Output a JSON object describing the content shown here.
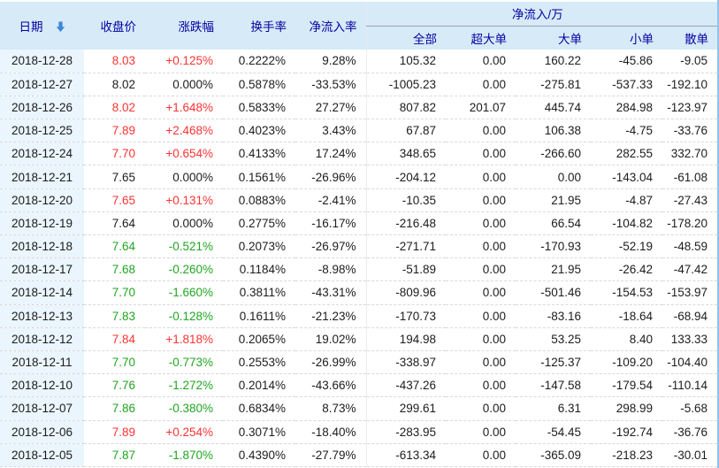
{
  "colors": {
    "up": "#ff3232",
    "down": "#21a521",
    "flat": "#1c1c1c",
    "header_bg": "#d6eaf8",
    "header_text": "#0000a0",
    "date_col_bg": "#eaf5fd",
    "sort_arrow": "#3c86d8"
  },
  "table": {
    "header": {
      "date": "日期",
      "close": "收盘价",
      "change": "涨跌幅",
      "turnover": "换手率",
      "inflow_rate": "净流入率",
      "group": "净流入/万",
      "sub": [
        "全部",
        "超大单",
        "大单",
        "小单",
        "散单"
      ]
    },
    "rows": [
      {
        "date": "2018-12-28",
        "close": "8.03",
        "change": "+0.125%",
        "turnover": "0.2222%",
        "inflow_rate": "9.28%",
        "all": "105.32",
        "xlarge": "0.00",
        "large": "160.22",
        "small": "-45.86",
        "retail": "-9.05",
        "trend": "up"
      },
      {
        "date": "2018-12-27",
        "close": "8.02",
        "change": "0.000%",
        "turnover": "0.5878%",
        "inflow_rate": "-33.53%",
        "all": "-1005.23",
        "xlarge": "0.00",
        "large": "-275.81",
        "small": "-537.33",
        "retail": "-192.10",
        "trend": "flat"
      },
      {
        "date": "2018-12-26",
        "close": "8.02",
        "change": "+1.648%",
        "turnover": "0.5833%",
        "inflow_rate": "27.27%",
        "all": "807.82",
        "xlarge": "201.07",
        "large": "445.74",
        "small": "284.98",
        "retail": "-123.97",
        "trend": "up"
      },
      {
        "date": "2018-12-25",
        "close": "7.89",
        "change": "+2.468%",
        "turnover": "0.4023%",
        "inflow_rate": "3.43%",
        "all": "67.87",
        "xlarge": "0.00",
        "large": "106.38",
        "small": "-4.75",
        "retail": "-33.76",
        "trend": "up"
      },
      {
        "date": "2018-12-24",
        "close": "7.70",
        "change": "+0.654%",
        "turnover": "0.4133%",
        "inflow_rate": "17.24%",
        "all": "348.65",
        "xlarge": "0.00",
        "large": "-266.60",
        "small": "282.55",
        "retail": "332.70",
        "trend": "up"
      },
      {
        "date": "2018-12-21",
        "close": "7.65",
        "change": "0.000%",
        "turnover": "0.1561%",
        "inflow_rate": "-26.96%",
        "all": "-204.12",
        "xlarge": "0.00",
        "large": "0.00",
        "small": "-143.04",
        "retail": "-61.08",
        "trend": "flat"
      },
      {
        "date": "2018-12-20",
        "close": "7.65",
        "change": "+0.131%",
        "turnover": "0.0883%",
        "inflow_rate": "-2.41%",
        "all": "-10.35",
        "xlarge": "0.00",
        "large": "21.95",
        "small": "-4.87",
        "retail": "-27.43",
        "trend": "up"
      },
      {
        "date": "2018-12-19",
        "close": "7.64",
        "change": "0.000%",
        "turnover": "0.2775%",
        "inflow_rate": "-16.17%",
        "all": "-216.48",
        "xlarge": "0.00",
        "large": "66.54",
        "small": "-104.82",
        "retail": "-178.20",
        "trend": "flat"
      },
      {
        "date": "2018-12-18",
        "close": "7.64",
        "change": "-0.521%",
        "turnover": "0.2073%",
        "inflow_rate": "-26.97%",
        "all": "-271.71",
        "xlarge": "0.00",
        "large": "-170.93",
        "small": "-52.19",
        "retail": "-48.59",
        "trend": "down"
      },
      {
        "date": "2018-12-17",
        "close": "7.68",
        "change": "-0.260%",
        "turnover": "0.1184%",
        "inflow_rate": "-8.98%",
        "all": "-51.89",
        "xlarge": "0.00",
        "large": "21.95",
        "small": "-26.42",
        "retail": "-47.42",
        "trend": "down"
      },
      {
        "date": "2018-12-14",
        "close": "7.70",
        "change": "-1.660%",
        "turnover": "0.3811%",
        "inflow_rate": "-43.31%",
        "all": "-809.96",
        "xlarge": "0.00",
        "large": "-501.46",
        "small": "-154.53",
        "retail": "-153.97",
        "trend": "down"
      },
      {
        "date": "2018-12-13",
        "close": "7.83",
        "change": "-0.128%",
        "turnover": "0.1611%",
        "inflow_rate": "-21.23%",
        "all": "-170.73",
        "xlarge": "0.00",
        "large": "-83.16",
        "small": "-18.64",
        "retail": "-68.94",
        "trend": "down"
      },
      {
        "date": "2018-12-12",
        "close": "7.84",
        "change": "+1.818%",
        "turnover": "0.2065%",
        "inflow_rate": "19.02%",
        "all": "194.98",
        "xlarge": "0.00",
        "large": "53.25",
        "small": "8.40",
        "retail": "133.33",
        "trend": "up"
      },
      {
        "date": "2018-12-11",
        "close": "7.70",
        "change": "-0.773%",
        "turnover": "0.2553%",
        "inflow_rate": "-26.99%",
        "all": "-338.97",
        "xlarge": "0.00",
        "large": "-125.37",
        "small": "-109.20",
        "retail": "-104.40",
        "trend": "down"
      },
      {
        "date": "2018-12-10",
        "close": "7.76",
        "change": "-1.272%",
        "turnover": "0.2014%",
        "inflow_rate": "-43.66%",
        "all": "-437.26",
        "xlarge": "0.00",
        "large": "-147.58",
        "small": "-179.54",
        "retail": "-110.14",
        "trend": "down"
      },
      {
        "date": "2018-12-07",
        "close": "7.86",
        "change": "-0.380%",
        "turnover": "0.6834%",
        "inflow_rate": "8.73%",
        "all": "299.61",
        "xlarge": "0.00",
        "large": "6.31",
        "small": "298.99",
        "retail": "-5.68",
        "trend": "down"
      },
      {
        "date": "2018-12-06",
        "close": "7.89",
        "change": "+0.254%",
        "turnover": "0.3071%",
        "inflow_rate": "-18.40%",
        "all": "-283.95",
        "xlarge": "0.00",
        "large": "-54.45",
        "small": "-192.74",
        "retail": "-36.76",
        "trend": "up"
      },
      {
        "date": "2018-12-05",
        "close": "7.87",
        "change": "-1.870%",
        "turnover": "0.4390%",
        "inflow_rate": "-27.79%",
        "all": "-613.34",
        "xlarge": "0.00",
        "large": "-365.09",
        "small": "-218.23",
        "retail": "-30.01",
        "trend": "down"
      }
    ]
  }
}
